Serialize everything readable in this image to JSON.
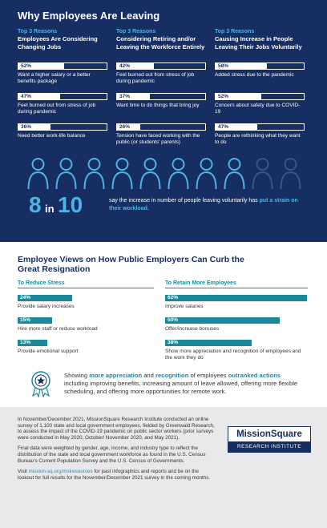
{
  "leaving": {
    "title": "Why Employees Are Leaving",
    "columns": [
      {
        "kicker": "Top 3 Reasons",
        "heading": "Employees Are Considering Changing Jobs",
        "items": [
          {
            "value": 52,
            "value_label": "52%",
            "text": "Want a higher salary or a better benefits package"
          },
          {
            "value": 47,
            "value_label": "47%",
            "text": "Feel burned out from stress of job during pandemic"
          },
          {
            "value": 36,
            "value_label": "36%",
            "text": "Need better work-life balance"
          }
        ]
      },
      {
        "kicker": "Top 3 Reasons",
        "heading": "Considering Retiring and/or Leaving the Workforce Entirely",
        "items": [
          {
            "value": 42,
            "value_label": "42%",
            "text": "Feel burned out from stress of job during pandemic"
          },
          {
            "value": 37,
            "value_label": "37%",
            "text": "Want time to do things that bring joy"
          },
          {
            "value": 26,
            "value_label": "26%",
            "text": "Tension have faced working with the public (or students' parents)"
          }
        ]
      },
      {
        "kicker": "Top 3 Reasons",
        "heading": "Causing Increase in People Leaving Their Jobs Voluntarily",
        "items": [
          {
            "value": 58,
            "value_label": "58%",
            "text": "Added stress due to the pandemic"
          },
          {
            "value": 52,
            "value_label": "52%",
            "text": "Concern about safety due to COVID-19"
          },
          {
            "value": 47,
            "value_label": "47%",
            "text": "People are rethinking what they want to do"
          }
        ]
      }
    ]
  },
  "workload": {
    "numerator": 8,
    "joiner": "in",
    "denominator": 10,
    "segments": [
      {
        "text": "say the increase in number of people leaving voluntarily has ",
        "highlight": false
      },
      {
        "text": "put a strain on their workload.",
        "highlight": true
      }
    ]
  },
  "views": {
    "title": "Employee Views on How Public Employers Can Curb the Great Resignation",
    "columns": [
      {
        "heading": "To Reduce Stress",
        "items": [
          {
            "value": 24,
            "value_label": "24%",
            "text": "Provide salary increases"
          },
          {
            "value": 15,
            "value_label": "15%",
            "text": "Hire more staff or reduce workload"
          },
          {
            "value": 13,
            "value_label": "13%",
            "text": "Provide emotional support"
          }
        ]
      },
      {
        "heading": "To Retain More Employees",
        "items": [
          {
            "value": 62,
            "value_label": "62%",
            "text": "Improve salaries"
          },
          {
            "value": 50,
            "value_label": "50%",
            "text": "Offer/increase bonuses"
          },
          {
            "value": 38,
            "value_label": "38%",
            "text": "Show more appreciation and recognition of employees and the work they do"
          }
        ]
      }
    ]
  },
  "callout": {
    "segments": [
      {
        "text": "Showing ",
        "highlight": false
      },
      {
        "text": "more appreciation",
        "highlight": true
      },
      {
        "text": " and ",
        "highlight": false
      },
      {
        "text": "recognition",
        "highlight": true
      },
      {
        "text": " of employees ",
        "highlight": false
      },
      {
        "text": "outranked actions",
        "highlight": true
      },
      {
        "text": " including improving benefits, increasing amount of leave allowed, offering more flexible scheduling, and offering more opportunities for remote work.",
        "highlight": false
      }
    ]
  },
  "footer": {
    "paragraphs": [
      [
        {
          "text": "In November/December 2021, MissionSquare Research Institute conducted an online survey of 1,100 state and local government employees, fielded by Greenwald Research, to assess the impact of the COVID-19 pandemic on public sector workers (prior surveys were conducted in May 2020, October/ November 2020, and May 2021).",
          "highlight": false
        }
      ],
      [
        {
          "text": "Final data were weighted by gender, age, income, and industry type to reflect the distribution of the state and local government workforce as found in the U.S. Census Bureau's Current Population Survey and the U.S. Census of Governments.",
          "highlight": false
        }
      ],
      [
        {
          "text": "Visit ",
          "highlight": false
        },
        {
          "text": "mission-sq.org/mslresources",
          "highlight": true
        },
        {
          "text": " for past infographics and reports and be on the lookout for full results for the November/December 2021 survey in the coming months.",
          "highlight": false
        }
      ]
    ],
    "logo": {
      "name": "MissionSquare",
      "tagline": "RESEARCH INSTITUTE"
    }
  }
}
